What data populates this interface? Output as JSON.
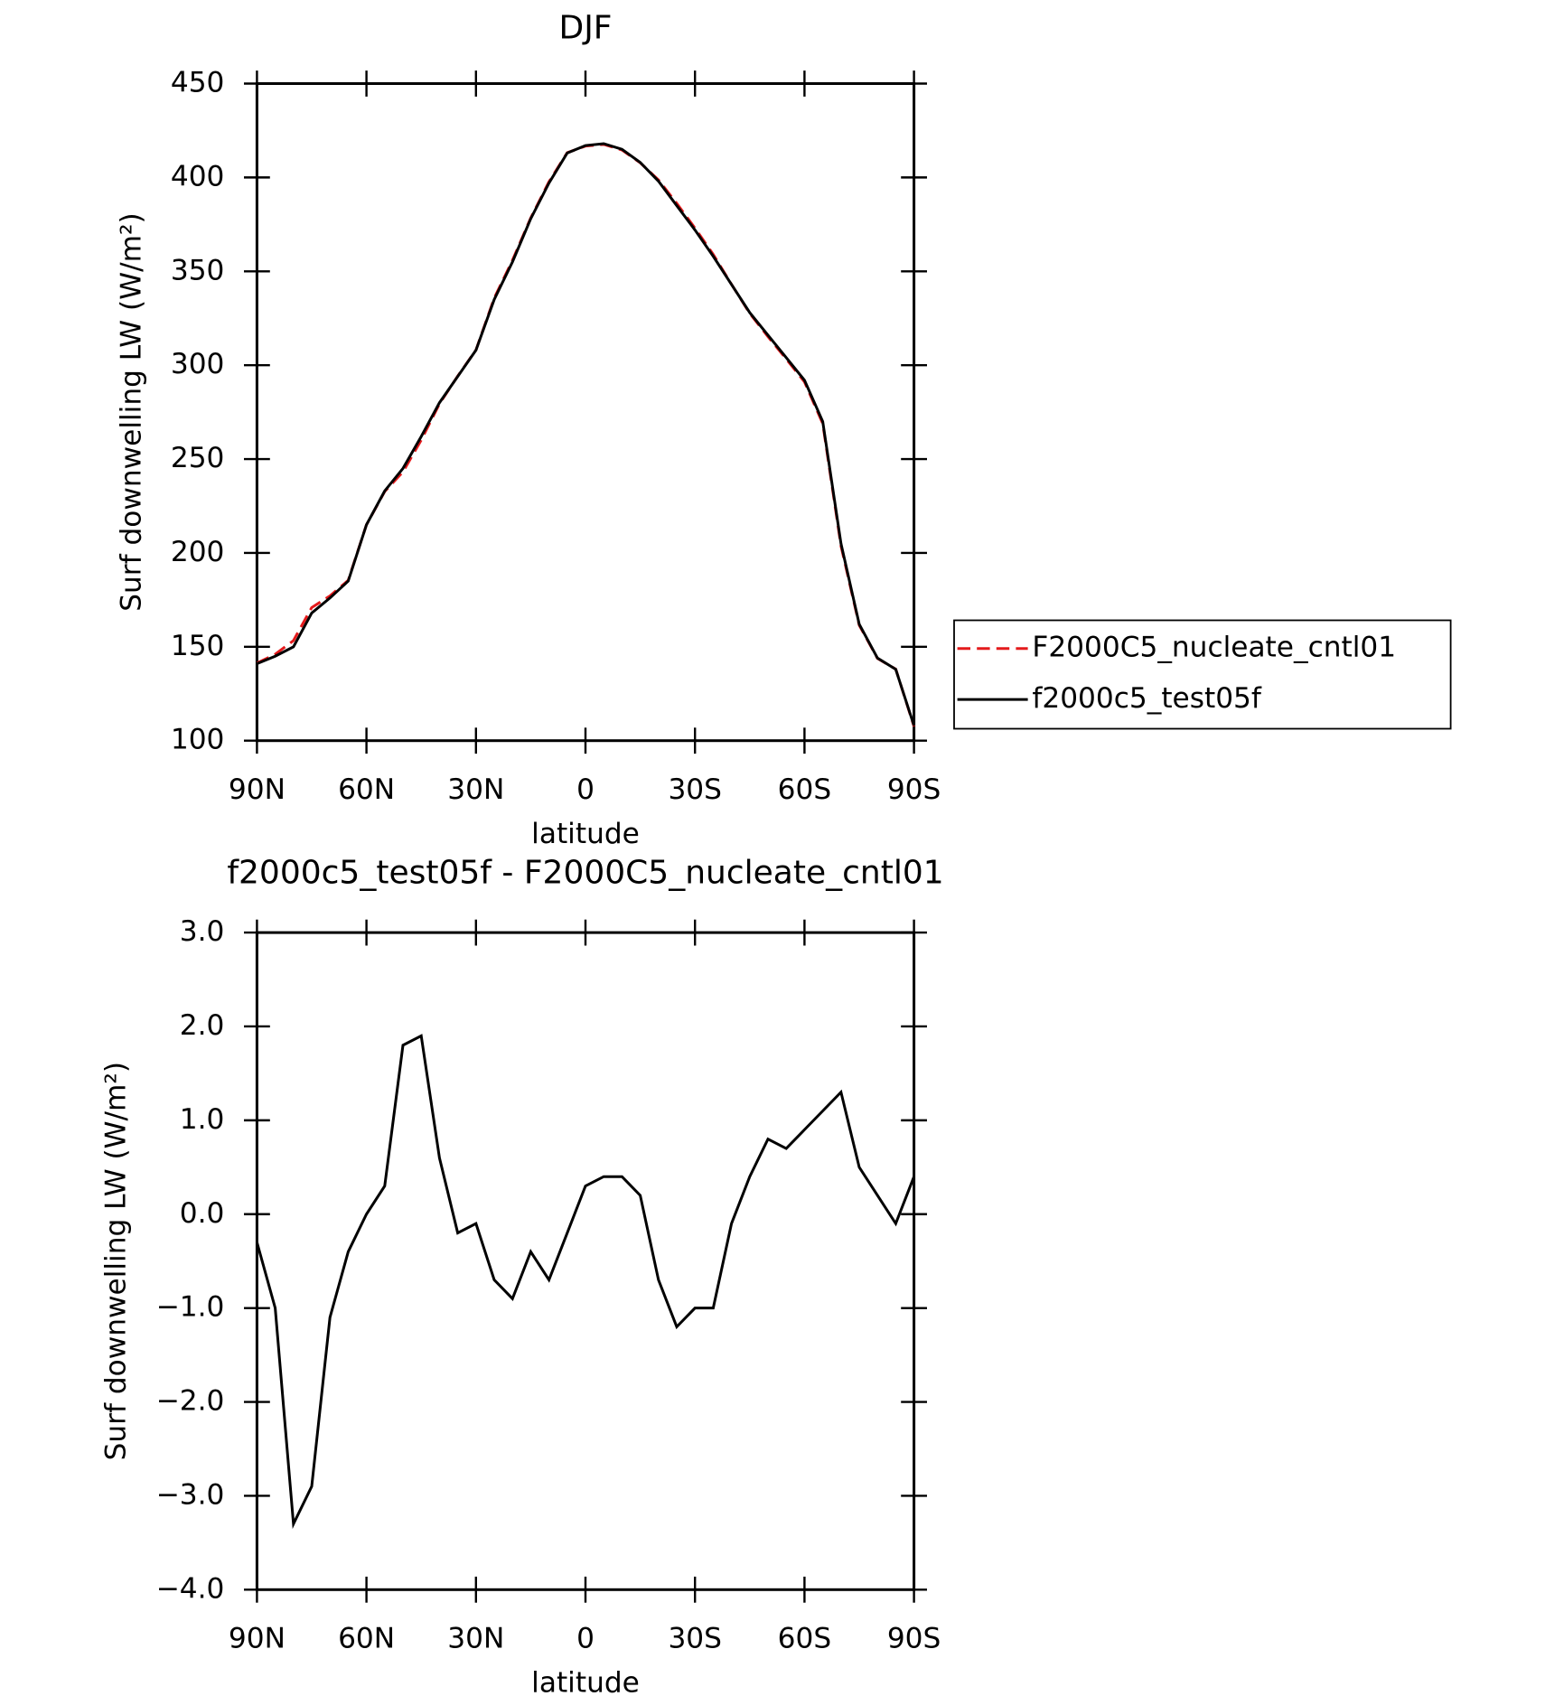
{
  "chart_data": [
    {
      "type": "line",
      "title": "DJF",
      "xlabel": "latitude",
      "ylabel": "Surf downwelling LW (W/m²)",
      "x": [
        90,
        85,
        80,
        75,
        70,
        65,
        60,
        55,
        50,
        45,
        40,
        35,
        30,
        25,
        20,
        15,
        10,
        5,
        0,
        -5,
        -10,
        -15,
        -20,
        -25,
        -30,
        -35,
        -40,
        -45,
        -50,
        -55,
        -60,
        -65,
        -70,
        -75,
        -80,
        -85,
        -90
      ],
      "xlim": [
        90,
        -90
      ],
      "xticks": [
        {
          "value": 90,
          "label": "90N"
        },
        {
          "value": 60,
          "label": "60N"
        },
        {
          "value": 30,
          "label": "30N"
        },
        0,
        {
          "value": -30,
          "label": "30S"
        },
        {
          "value": -60,
          "label": "60S"
        },
        {
          "value": -90,
          "label": "90S"
        }
      ],
      "ylim": [
        100,
        450
      ],
      "yticks": [
        100,
        150,
        200,
        250,
        300,
        350,
        400,
        450
      ],
      "legend": "right",
      "series": [
        {
          "name": "F2000C5_nucleate_cntl01",
          "color": "#e41a1c",
          "dash": true,
          "values": [
            141.3,
            146,
            153.3,
            170.9,
            177.1,
            185.4,
            215,
            232.7,
            243.2,
            260.1,
            279.4,
            294.2,
            308.1,
            335.7,
            355.9,
            378.4,
            397.7,
            413.2,
            416.7,
            417.6,
            414.6,
            407.8,
            398.7,
            386.2,
            373,
            359,
            343.1,
            327.6,
            315.2,
            303.3,
            291.1,
            268.9,
            203.7,
            161.5,
            143.8,
            138.1,
            107.6
          ]
        },
        {
          "name": "f2000c5_test05f",
          "color": "#000000",
          "dash": false,
          "values": [
            141,
            145,
            150,
            168,
            176,
            185,
            215,
            233,
            245,
            262,
            280,
            294,
            308,
            335,
            355,
            378,
            397,
            413,
            417,
            418,
            415,
            408,
            398,
            385,
            372,
            358,
            343,
            328,
            316,
            304,
            292,
            270,
            205,
            162,
            144,
            138,
            108
          ]
        }
      ]
    },
    {
      "type": "line",
      "title": "f2000c5_test05f - F2000C5_nucleate_cntl01",
      "xlabel": "latitude",
      "ylabel": "Surf downwelling LW (W/m²)",
      "x": [
        90,
        85,
        80,
        75,
        70,
        65,
        60,
        55,
        50,
        45,
        40,
        35,
        30,
        25,
        20,
        15,
        10,
        5,
        0,
        -5,
        -10,
        -15,
        -20,
        -25,
        -30,
        -35,
        -40,
        -45,
        -50,
        -55,
        -60,
        -65,
        -70,
        -75,
        -80,
        -85,
        -90
      ],
      "xlim": [
        90,
        -90
      ],
      "xticks": [
        {
          "value": 90,
          "label": "90N"
        },
        {
          "value": 60,
          "label": "60N"
        },
        {
          "value": 30,
          "label": "30N"
        },
        0,
        {
          "value": -30,
          "label": "30S"
        },
        {
          "value": -60,
          "label": "60S"
        },
        {
          "value": -90,
          "label": "90S"
        }
      ],
      "ylim": [
        -4,
        3
      ],
      "yticks": [
        {
          "value": -4,
          "label": "−4.0"
        },
        {
          "value": -3,
          "label": "−3.0"
        },
        {
          "value": -2,
          "label": "−2.0"
        },
        {
          "value": -1,
          "label": "−1.0"
        },
        {
          "value": 0,
          "label": "0.0"
        },
        {
          "value": 1,
          "label": "1.0"
        },
        {
          "value": 2,
          "label": "2.0"
        },
        {
          "value": 3,
          "label": "3.0"
        }
      ],
      "series": [
        {
          "color": "#000000",
          "dash": false,
          "values": [
            -0.3,
            -1.0,
            -3.3,
            -2.9,
            -1.1,
            -0.4,
            0.0,
            0.3,
            1.8,
            1.9,
            0.6,
            -0.2,
            -0.1,
            -0.7,
            -0.9,
            -0.4,
            -0.7,
            -0.2,
            0.3,
            0.4,
            0.4,
            0.2,
            -0.7,
            -1.2,
            -1.0,
            -1.0,
            -0.1,
            0.4,
            0.8,
            0.7,
            0.9,
            1.1,
            1.3,
            0.5,
            0.2,
            -0.1,
            0.4
          ]
        }
      ]
    }
  ]
}
